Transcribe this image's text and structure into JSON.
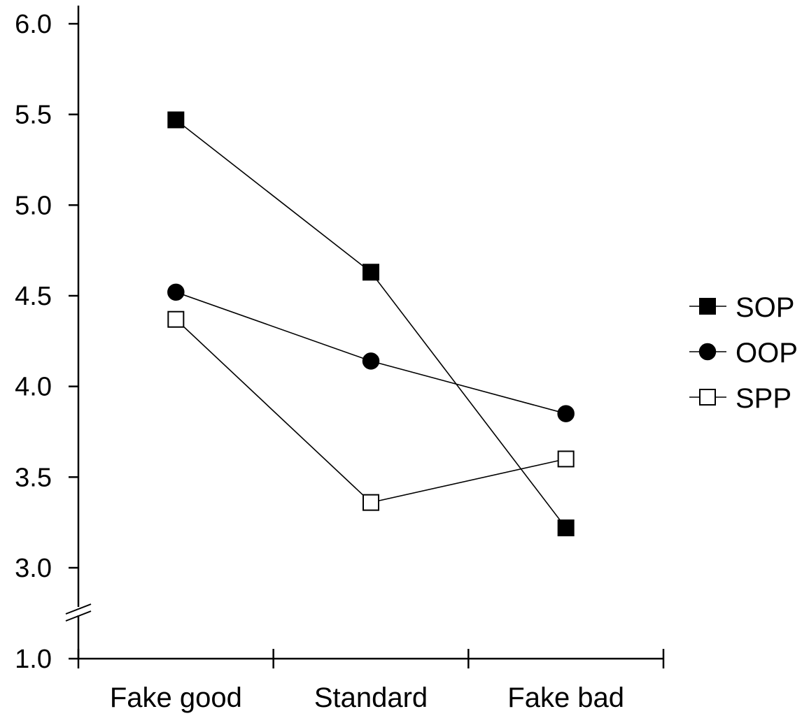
{
  "chart_data": {
    "type": "line",
    "title": "",
    "xlabel": "",
    "ylabel": "",
    "categories": [
      "Fake good",
      "Standard",
      "Fake bad"
    ],
    "y_ticks": [
      "1.0",
      "3.0",
      "3.5",
      "4.0",
      "4.5",
      "5.0",
      "5.5",
      "6.0"
    ],
    "ylim": [
      1.0,
      6.0
    ],
    "y_axis_break": [
      1.0,
      3.0
    ],
    "grid": false,
    "legend_position": "right",
    "series": [
      {
        "name": "SOP",
        "marker": "filled-square",
        "values": [
          5.47,
          4.63,
          3.22
        ]
      },
      {
        "name": "OOP",
        "marker": "filled-circle",
        "values": [
          4.52,
          4.14,
          3.85
        ]
      },
      {
        "name": "SPP",
        "marker": "open-square",
        "values": [
          4.37,
          3.36,
          3.6
        ]
      }
    ],
    "colors": {
      "line": "#000000",
      "marker_fill": "#000000",
      "open_marker_fill": "#ffffff"
    }
  }
}
